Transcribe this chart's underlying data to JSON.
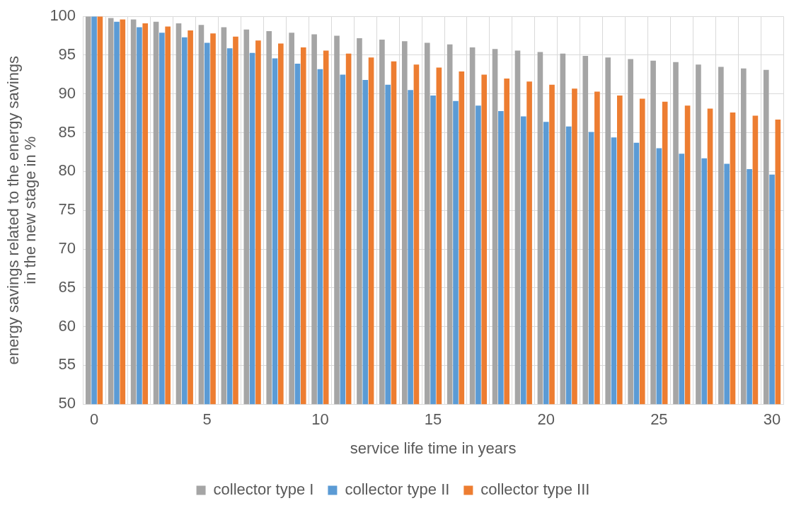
{
  "chart_data": {
    "type": "bar",
    "xlabel": "service life time in years",
    "ylabel": "energy savings related to the energy savings in the new stage in %",
    "categories": [
      "0",
      null,
      null,
      null,
      null,
      "5",
      null,
      null,
      null,
      null,
      "10",
      null,
      null,
      null,
      null,
      "15",
      null,
      null,
      null,
      null,
      "20",
      null,
      null,
      null,
      null,
      "25",
      null,
      null,
      null,
      null,
      "30"
    ],
    "series": [
      {
        "name": "collector type I",
        "color": "#a5a5a5",
        "values": [
          100,
          99.8,
          99.6,
          99.3,
          99.1,
          98.9,
          98.6,
          98.3,
          98.1,
          97.9,
          97.7,
          97.5,
          97.2,
          97.0,
          96.8,
          96.6,
          96.4,
          96.0,
          95.8,
          95.6,
          95.4,
          95.2,
          94.9,
          94.7,
          94.5,
          94.3,
          94.1,
          93.8,
          93.5,
          93.3,
          93.1
        ]
      },
      {
        "name": "collector type II",
        "color": "#5b9bd5",
        "values": [
          100,
          99.3,
          98.6,
          97.9,
          97.3,
          96.6,
          95.9,
          95.3,
          94.6,
          93.9,
          93.2,
          92.5,
          91.8,
          91.2,
          90.5,
          89.8,
          89.1,
          88.5,
          87.8,
          87.1,
          86.4,
          85.8,
          85.1,
          84.4,
          83.7,
          83.0,
          82.3,
          81.7,
          81.0,
          80.3,
          79.6
        ]
      },
      {
        "name": "collector type III",
        "color": "#ed7d31",
        "values": [
          100,
          99.6,
          99.1,
          98.7,
          98.2,
          97.8,
          97.4,
          96.9,
          96.5,
          96.0,
          95.6,
          95.2,
          94.7,
          94.2,
          93.8,
          93.4,
          92.9,
          92.5,
          92.0,
          91.6,
          91.2,
          90.7,
          90.3,
          89.8,
          89.4,
          89.0,
          88.5,
          88.1,
          87.6,
          87.2,
          86.7
        ]
      }
    ],
    "ylim": [
      50,
      100
    ],
    "yticks": [
      50,
      55,
      60,
      65,
      70,
      75,
      80,
      85,
      90,
      95,
      100
    ],
    "grid": true,
    "legend": "bottom"
  }
}
